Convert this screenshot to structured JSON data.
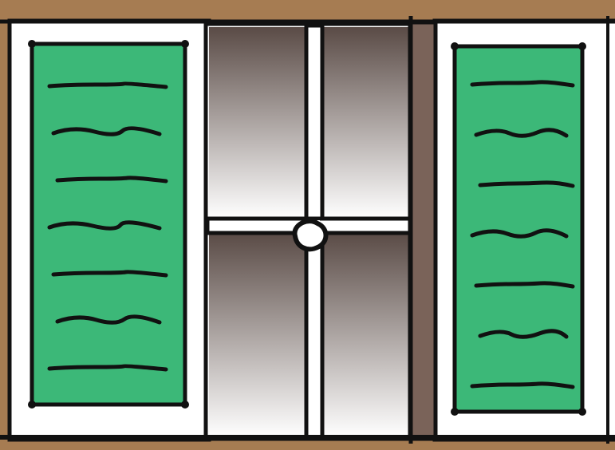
{
  "scene": {
    "subject": "window-with-green-shutters",
    "colors": {
      "wall": "#a67c52",
      "frame": "#ffffff",
      "outline": "#111111",
      "shutter": "#3cb878",
      "glass_top": "#5a4b46",
      "glass_bottom": "#ffffff",
      "side_panel": "#7a6359"
    },
    "shutters": [
      {
        "name": "left-shutter",
        "louver_count": 7
      },
      {
        "name": "right-shutter",
        "louver_count": 7
      }
    ],
    "glass_panes": [
      {
        "name": "pane-top-left"
      },
      {
        "name": "pane-top-right"
      },
      {
        "name": "pane-bottom-left"
      },
      {
        "name": "pane-bottom-right"
      }
    ],
    "latch": {
      "name": "window-latch-icon"
    }
  }
}
